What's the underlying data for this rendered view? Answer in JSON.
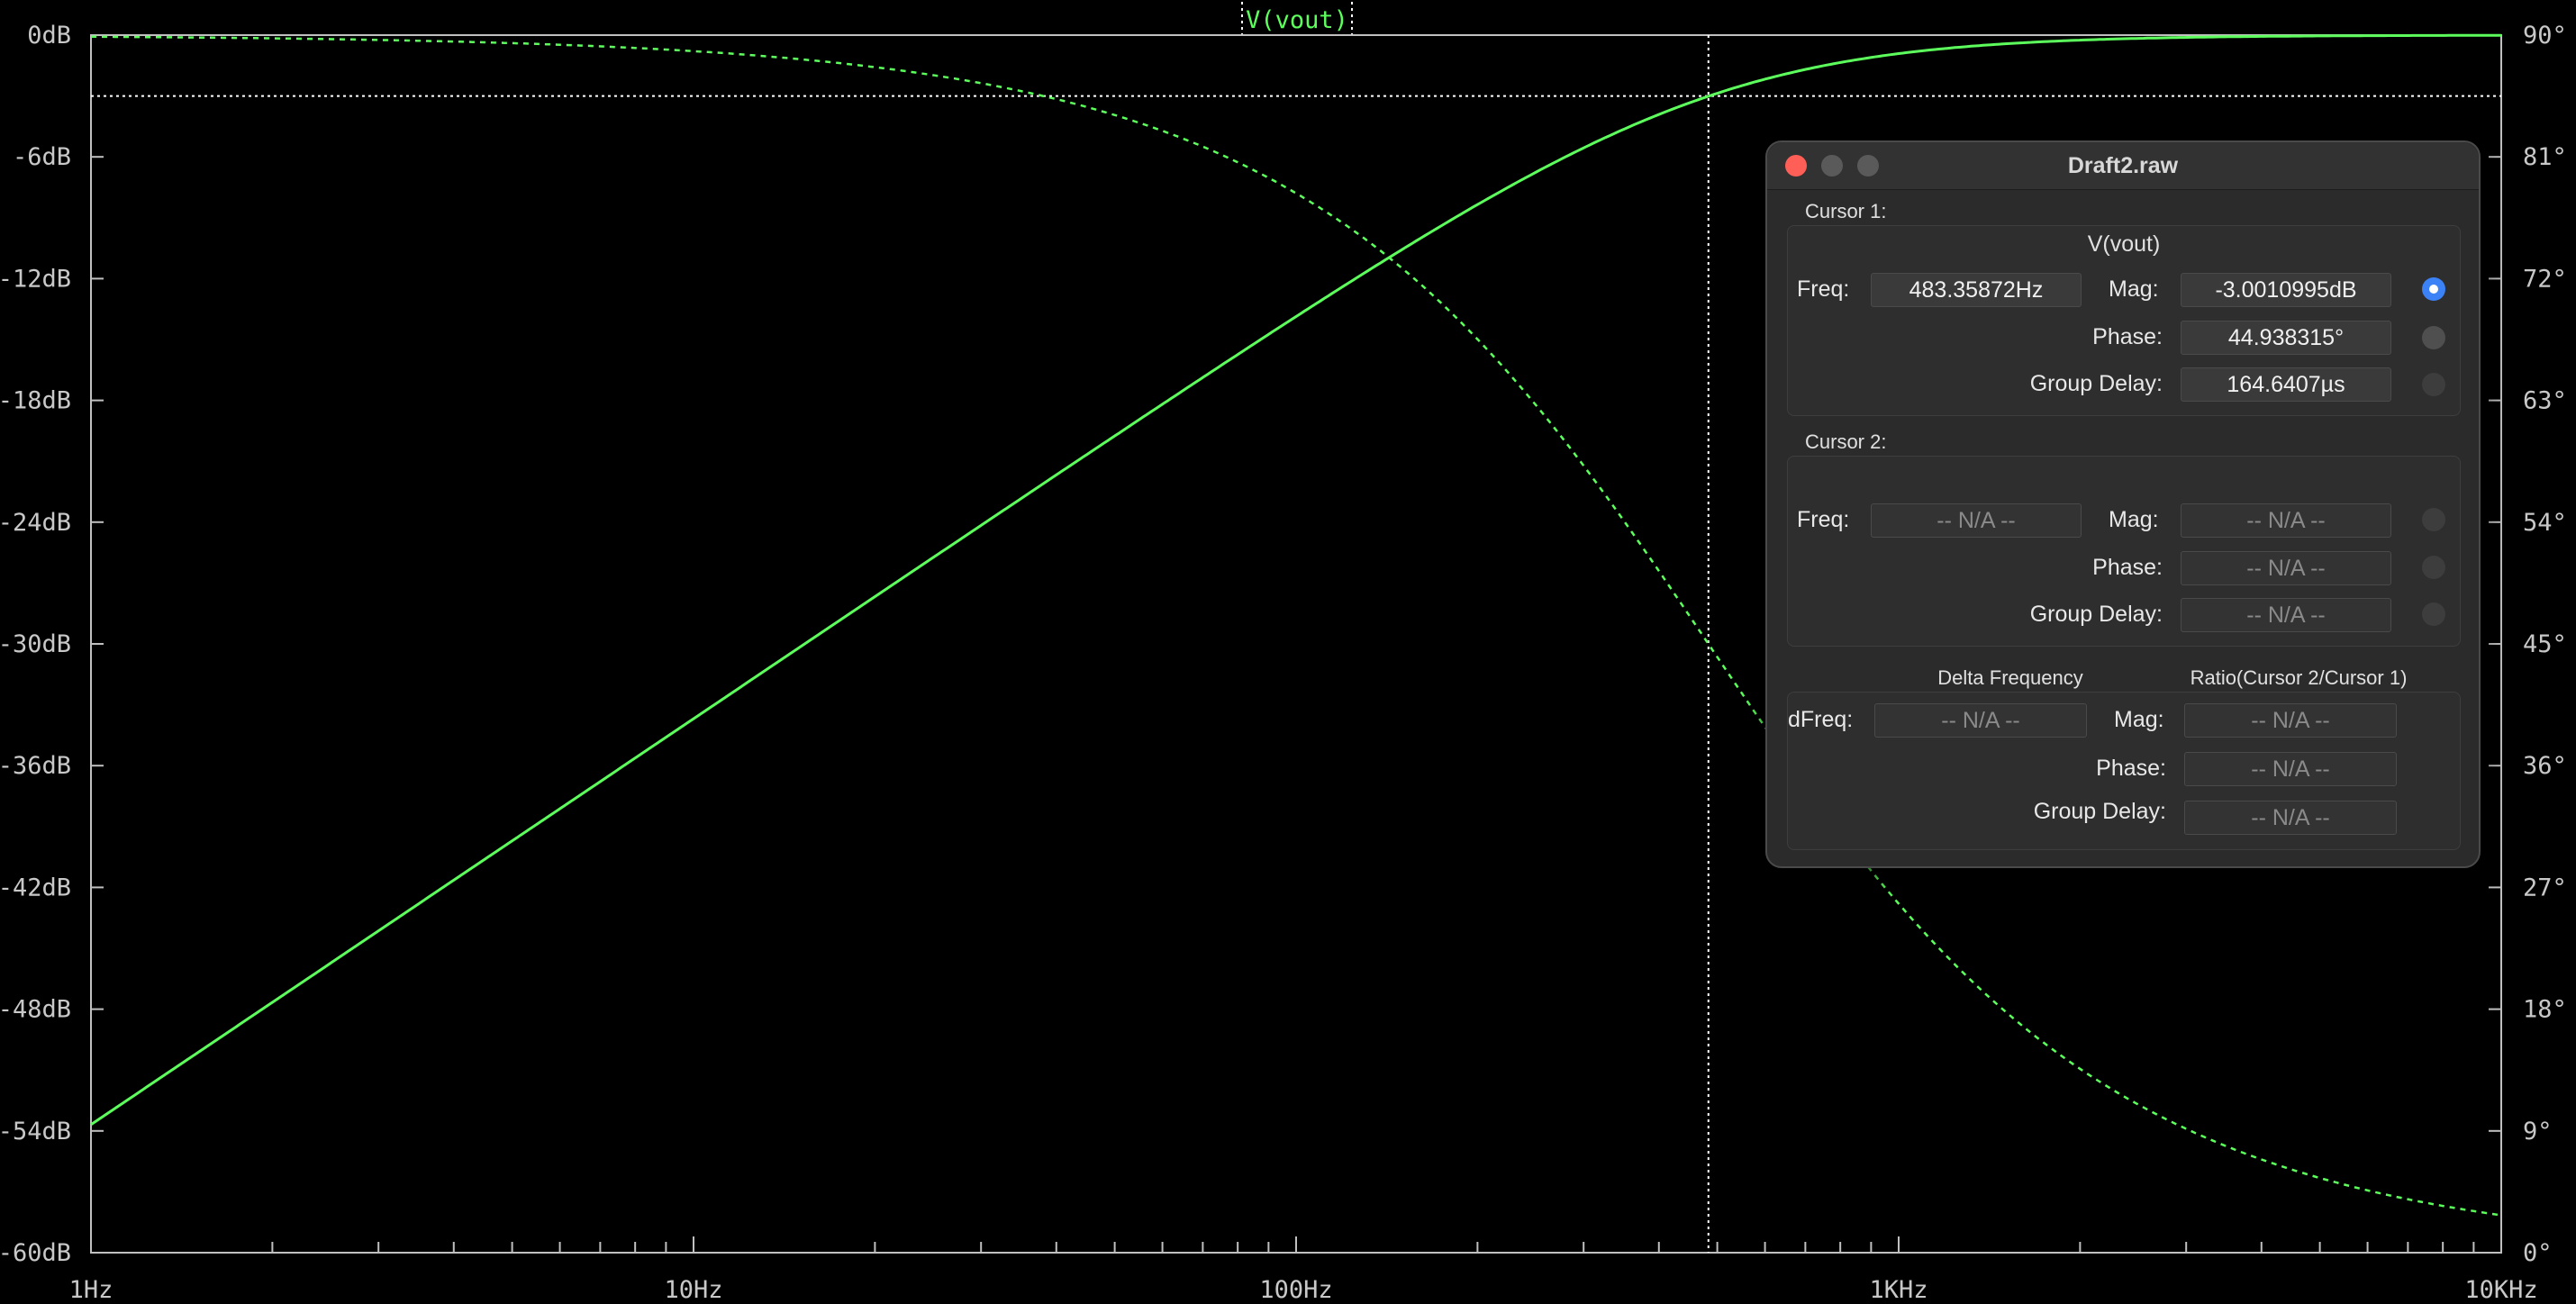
{
  "plot": {
    "trace_name": "V(vout)",
    "left_axis_labels": [
      "0dB",
      "-6dB",
      "-12dB",
      "-18dB",
      "-24dB",
      "-30dB",
      "-36dB",
      "-42dB",
      "-48dB",
      "-54dB",
      "-60dB"
    ],
    "right_axis_labels": [
      "90°",
      "81°",
      "72°",
      "63°",
      "54°",
      "45°",
      "36°",
      "27°",
      "18°",
      "9°",
      "0°"
    ],
    "x_axis_labels": [
      "1Hz",
      "10Hz",
      "100Hz",
      "1KHz",
      "10KHz"
    ],
    "trace_color": "#5cff5c",
    "grid_color": "#c0c0c0"
  },
  "chart_data": {
    "type": "line",
    "x_scale": "log",
    "xlim_hz": [
      1,
      10000
    ],
    "ylim_db": [
      -60,
      0
    ],
    "ylim_phase_deg": [
      0,
      90
    ],
    "corner_frequency_hz": 483.35872,
    "series": [
      {
        "name": "V(vout)",
        "style": "solid"
      },
      {
        "name": "V(vout)",
        "style": "dashed"
      }
    ],
    "cursor_1": {
      "freq_hz": 483.35872,
      "mag_db": -3.0010995
    }
  },
  "dialog": {
    "title": "Draft2.raw",
    "cursor1": {
      "label": "Cursor 1:",
      "trace": "V(vout)",
      "freq_label": "Freq:",
      "freq": "483.35872Hz",
      "mag_label": "Mag:",
      "mag": "-3.0010995dB",
      "phase_label": "Phase:",
      "phase": "44.938315°",
      "gd_label": "Group Delay:",
      "gd": "164.6407µs"
    },
    "cursor2": {
      "label": "Cursor 2:",
      "freq_label": "Freq:",
      "freq": "-- N/A --",
      "mag_label": "Mag:",
      "mag": "-- N/A --",
      "phase_label": "Phase:",
      "phase": "-- N/A --",
      "gd_label": "Group Delay:",
      "gd": "-- N/A --"
    },
    "delta": {
      "header_freq": "Delta Frequency",
      "header_ratio": "Ratio(Cursor 2/Cursor 1)",
      "dfreq_label": "dFreq:",
      "dfreq": "-- N/A --",
      "mag_label": "Mag:",
      "mag": "-- N/A --",
      "phase_label": "Phase:",
      "phase": "-- N/A --",
      "gd_label": "Group Delay:",
      "gd": "-- N/A --"
    }
  }
}
